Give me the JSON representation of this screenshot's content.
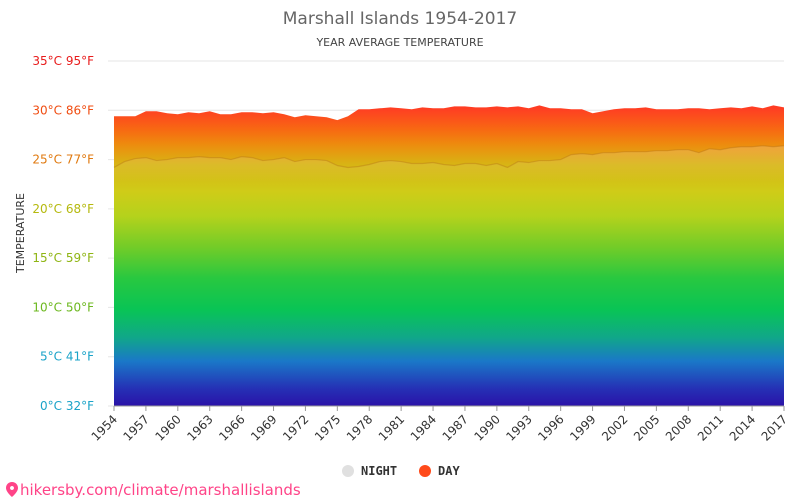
{
  "chart_data": {
    "type": "area",
    "title": "Marshall Islands 1954-2017",
    "subtitle": "YEAR AVERAGE TEMPERATURE",
    "ylabel": "TEMPERATURE",
    "ylim": [
      0,
      35
    ],
    "y_ticks": [
      {
        "value": 0,
        "label": "0°C 32°F",
        "color": "#1aa3c8"
      },
      {
        "value": 5,
        "label": "5°C 41°F",
        "color": "#1aa3c8"
      },
      {
        "value": 10,
        "label": "10°C 50°F",
        "color": "#6cb81f"
      },
      {
        "value": 15,
        "label": "15°C 59°F",
        "color": "#8fb514"
      },
      {
        "value": 20,
        "label": "20°C 68°F",
        "color": "#b5b90e"
      },
      {
        "value": 25,
        "label": "25°C 77°F",
        "color": "#e07a10"
      },
      {
        "value": 30,
        "label": "30°C 86°F",
        "color": "#f04d12"
      },
      {
        "value": 35,
        "label": "35°C 95°F",
        "color": "#e81c1c"
      }
    ],
    "x_ticks": [
      1954,
      1957,
      1960,
      1963,
      1966,
      1969,
      1972,
      1975,
      1978,
      1981,
      1984,
      1987,
      1990,
      1993,
      1996,
      1999,
      2002,
      2005,
      2008,
      2011,
      2014,
      2017
    ],
    "x": [
      1954,
      1955,
      1956,
      1957,
      1958,
      1959,
      1960,
      1961,
      1962,
      1963,
      1964,
      1965,
      1966,
      1967,
      1968,
      1969,
      1970,
      1971,
      1972,
      1973,
      1974,
      1975,
      1976,
      1977,
      1978,
      1979,
      1980,
      1981,
      1982,
      1983,
      1984,
      1985,
      1986,
      1987,
      1988,
      1989,
      1990,
      1991,
      1992,
      1993,
      1994,
      1995,
      1996,
      1997,
      1998,
      1999,
      2000,
      2001,
      2002,
      2003,
      2004,
      2005,
      2006,
      2007,
      2008,
      2009,
      2010,
      2011,
      2012,
      2013,
      2014,
      2015,
      2016,
      2017
    ],
    "series": [
      {
        "name": "DAY",
        "color": "#ff4a1a",
        "values": [
          29.4,
          29.4,
          29.4,
          29.9,
          29.9,
          29.7,
          29.6,
          29.8,
          29.7,
          29.9,
          29.6,
          29.6,
          29.8,
          29.8,
          29.7,
          29.8,
          29.6,
          29.3,
          29.5,
          29.4,
          29.3,
          29.0,
          29.4,
          30.1,
          30.1,
          30.2,
          30.3,
          30.2,
          30.1,
          30.3,
          30.2,
          30.2,
          30.4,
          30.4,
          30.3,
          30.3,
          30.4,
          30.3,
          30.4,
          30.2,
          30.5,
          30.2,
          30.2,
          30.1,
          30.1,
          29.7,
          29.9,
          30.1,
          30.2,
          30.2,
          30.3,
          30.1,
          30.1,
          30.1,
          30.2,
          30.2,
          30.1,
          30.2,
          30.3,
          30.2,
          30.4,
          30.2,
          30.5,
          30.3
        ]
      },
      {
        "name": "NIGHT",
        "color": "#e0e0e0",
        "values": [
          24.2,
          24.8,
          25.1,
          25.2,
          24.9,
          25.0,
          25.2,
          25.2,
          25.3,
          25.2,
          25.2,
          25.0,
          25.3,
          25.2,
          24.9,
          25.0,
          25.2,
          24.8,
          25.0,
          25.0,
          24.9,
          24.4,
          24.2,
          24.3,
          24.5,
          24.8,
          24.9,
          24.8,
          24.6,
          24.6,
          24.7,
          24.5,
          24.4,
          24.6,
          24.6,
          24.4,
          24.6,
          24.2,
          24.8,
          24.7,
          24.9,
          24.9,
          25.0,
          25.5,
          25.6,
          25.5,
          25.7,
          25.7,
          25.8,
          25.8,
          25.8,
          25.9,
          25.9,
          26.0,
          26.0,
          25.7,
          26.1,
          26.0,
          26.2,
          26.3,
          26.3,
          26.4,
          26.3,
          26.4
        ]
      }
    ],
    "grid": true,
    "legend": "bottom-center",
    "legend_entries": [
      {
        "name": "NIGHT",
        "color": "#e0e0e0"
      },
      {
        "name": "DAY",
        "color": "#ff4a1a"
      }
    ]
  },
  "source": {
    "text": "hikersby.com/climate/marshallislands",
    "pin_color": "#ff4488"
  }
}
